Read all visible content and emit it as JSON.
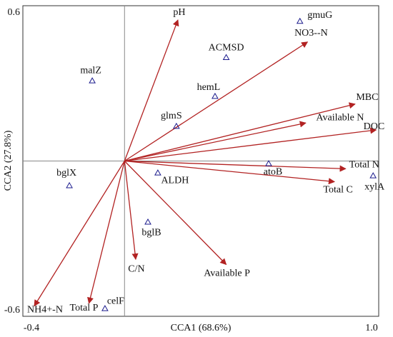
{
  "chart_data": {
    "type": "biplot",
    "x_label": "CCA1 (68.6%)",
    "y_label": "CCA2 (27.8%)",
    "xlim": [
      -0.4,
      1.0
    ],
    "ylim": [
      -0.6,
      0.6
    ],
    "xticks": [
      -0.4,
      {
        "value": 1.0,
        "label": "1.0"
      }
    ],
    "yticks": [
      -0.6,
      0.6
    ],
    "arrow_color": "#b22222",
    "point_color": "#1a1a8c",
    "arrows": {
      "names": [
        "pH",
        "NO3--N",
        "MBC",
        "Available N",
        "DOC",
        "Total N",
        "Total C",
        "Available P",
        "C/N",
        "Total P",
        "NH4+-N"
      ],
      "x": [
        0.21,
        0.72,
        0.907,
        0.713,
        0.99,
        0.87,
        0.826,
        0.4,
        0.044,
        -0.14,
        -0.355
      ],
      "y": [
        0.545,
        0.46,
        0.22,
        0.147,
        0.12,
        -0.03,
        -0.08,
        -0.4,
        -0.38,
        -0.55,
        -0.56
      ]
    },
    "points": {
      "names": [
        "gmuG",
        "ACMSD",
        "hemL",
        "malZ",
        "glmS",
        "bglX",
        "ALDH",
        "atoB",
        "xylA",
        "bglB",
        "celF"
      ],
      "x": [
        0.69,
        0.4,
        0.356,
        -0.127,
        0.204,
        -0.217,
        0.131,
        0.567,
        0.978,
        0.092,
        -0.077
      ],
      "y": [
        0.54,
        0.4,
        0.25,
        0.31,
        0.134,
        -0.095,
        -0.046,
        -0.01,
        -0.057,
        -0.236,
        -0.57
      ]
    }
  }
}
